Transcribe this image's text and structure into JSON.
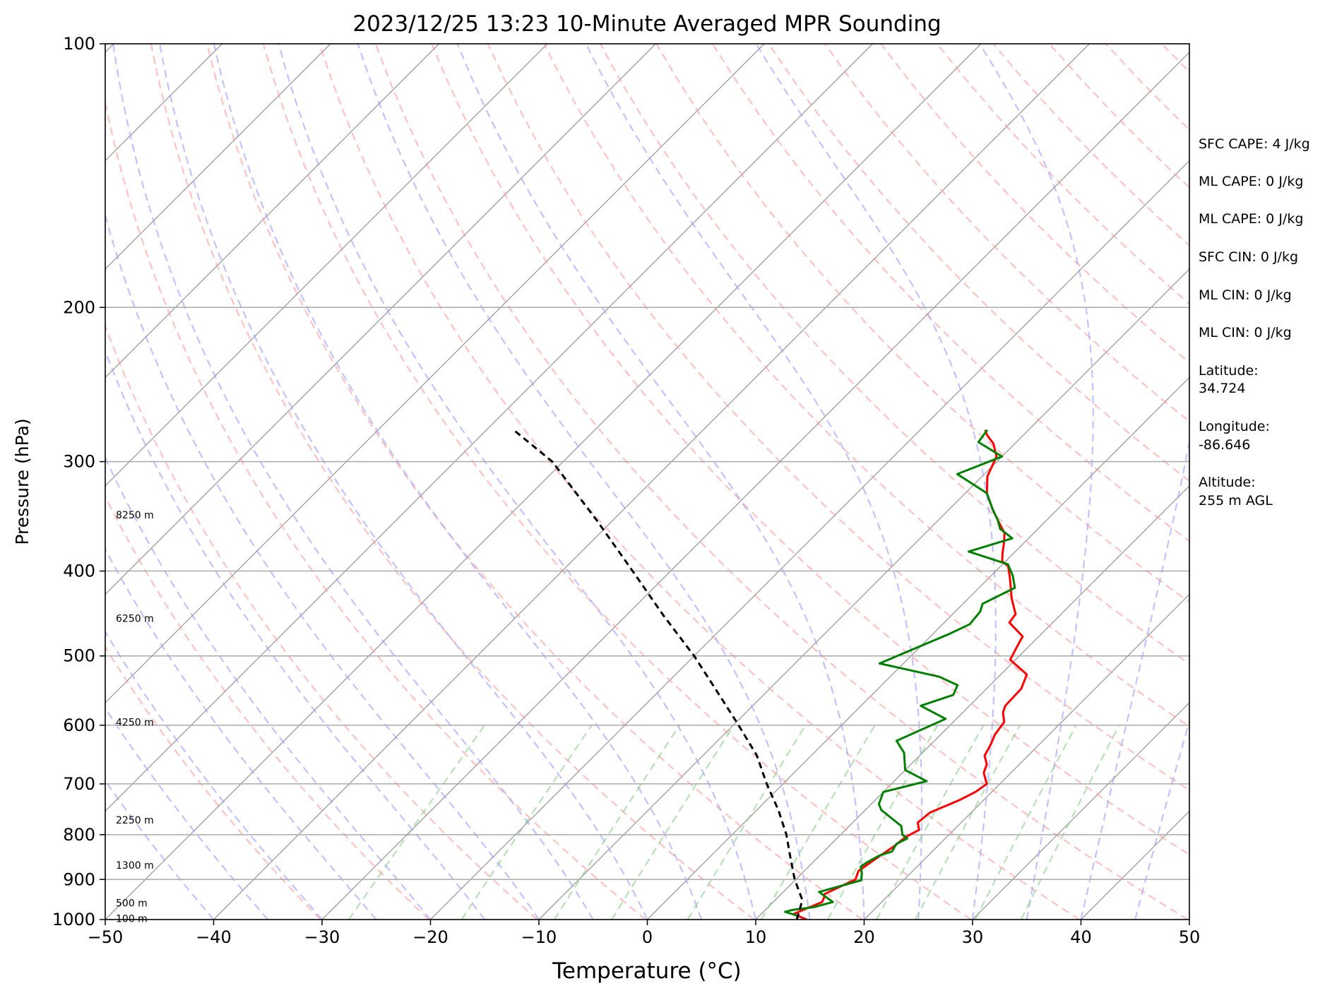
{
  "chart_data": {
    "type": "line",
    "title": "2023/12/25 13:23 10-Minute Averaged MPR Sounding",
    "xlabel": "Temperature (°C)",
    "ylabel": "Pressure (hPa)",
    "xlim": [
      -50,
      50
    ],
    "ylim": [
      1000,
      100
    ],
    "y_scale": "log",
    "skew_t": true,
    "grid": true,
    "x_ticks": [
      "−50",
      "−40",
      "−30",
      "−20",
      "−10",
      "0",
      "10",
      "20",
      "30",
      "40",
      "50"
    ],
    "y_ticks": [
      "100",
      "200",
      "300",
      "400",
      "500",
      "600",
      "700",
      "800",
      "900",
      "1000"
    ],
    "colors": {
      "temperature": "#ff0000",
      "dewpoint": "#008000",
      "parcel": "#000000",
      "dry_adiabat": "#ff9999",
      "moist_adiabat": "#9999ff",
      "mixing_ratio": "#88cc88",
      "isotherm": "#999999"
    },
    "series": [
      {
        "key": "temperature",
        "style": "solid",
        "points": [
          [
            14.7,
            1000
          ],
          [
            13.5,
            990
          ],
          [
            13.0,
            985
          ],
          [
            14.5,
            955
          ],
          [
            14.3,
            945
          ],
          [
            14.0,
            935
          ],
          [
            15.5,
            900
          ],
          [
            15.0,
            880
          ],
          [
            15.5,
            850
          ],
          [
            16.0,
            825
          ],
          [
            16.2,
            805
          ],
          [
            16.8,
            790
          ],
          [
            16.0,
            775
          ],
          [
            16.2,
            755
          ],
          [
            17.8,
            730
          ],
          [
            18.5,
            715
          ],
          [
            18.8,
            700
          ],
          [
            17.5,
            680
          ],
          [
            17.0,
            665
          ],
          [
            16.0,
            650
          ],
          [
            15.5,
            630
          ],
          [
            15.0,
            615
          ],
          [
            14.7,
            595
          ],
          [
            13.7,
            580
          ],
          [
            13.3,
            570
          ],
          [
            13.2,
            545
          ],
          [
            12.4,
            525
          ],
          [
            9.5,
            505
          ],
          [
            9.0,
            490
          ],
          [
            8.5,
            475
          ],
          [
            6.0,
            458
          ],
          [
            5.8,
            448
          ],
          [
            4.0,
            430
          ],
          [
            2.0,
            408
          ],
          [
            0.7,
            395
          ],
          [
            -0.3,
            390
          ],
          [
            -1.0,
            382
          ],
          [
            -1.8,
            372
          ],
          [
            -2.7,
            362
          ],
          [
            -4.5,
            350
          ],
          [
            -6.0,
            340
          ],
          [
            -8.0,
            326
          ],
          [
            -9.5,
            312
          ],
          [
            -10.5,
            296
          ],
          [
            -12.0,
            286
          ],
          [
            -13.3,
            280
          ],
          [
            -14.0,
            276
          ]
        ]
      },
      {
        "key": "dewpoint",
        "style": "solid",
        "points": [
          [
            13.8,
            1000
          ],
          [
            13.5,
            990
          ],
          [
            12.0,
            980
          ],
          [
            12.5,
            975
          ],
          [
            14.2,
            968
          ],
          [
            15.5,
            955
          ],
          [
            13.3,
            930
          ],
          [
            16.1,
            902
          ],
          [
            15.5,
            885
          ],
          [
            14.8,
            870
          ],
          [
            15.0,
            860
          ],
          [
            15.5,
            845
          ],
          [
            16.3,
            836
          ],
          [
            16.0,
            820
          ],
          [
            16.5,
            808
          ],
          [
            15.7,
            800
          ],
          [
            14.8,
            782
          ],
          [
            11.5,
            750
          ],
          [
            10.7,
            738
          ],
          [
            10.0,
            715
          ],
          [
            13.0,
            695
          ],
          [
            10.0,
            675
          ],
          [
            8.3,
            645
          ],
          [
            6.5,
            625
          ],
          [
            9.0,
            590
          ],
          [
            5.5,
            570
          ],
          [
            7.5,
            554
          ],
          [
            7.0,
            540
          ],
          [
            4.5,
            528
          ],
          [
            -2.2,
            510
          ],
          [
            -0.3,
            490
          ],
          [
            1.5,
            472
          ],
          [
            2.5,
            460
          ],
          [
            2.3,
            445
          ],
          [
            1.8,
            436
          ],
          [
            3.3,
            418
          ],
          [
            2.0,
            405
          ],
          [
            0.5,
            393
          ],
          [
            -4.3,
            380
          ],
          [
            -1.5,
            367
          ],
          [
            -3.5,
            358
          ],
          [
            -4.5,
            350
          ],
          [
            -6.0,
            340
          ],
          [
            -8.0,
            326
          ],
          [
            -12.5,
            310
          ],
          [
            -10.0,
            296
          ],
          [
            -13.5,
            285
          ],
          [
            -13.8,
            276
          ]
        ]
      },
      {
        "key": "parcel",
        "style": "dashed",
        "points": [
          [
            13.8,
            1000
          ],
          [
            12.5,
            950
          ],
          [
            9.9,
            900
          ],
          [
            7.5,
            850
          ],
          [
            5.0,
            800
          ],
          [
            2.0,
            750
          ],
          [
            -1.5,
            700
          ],
          [
            -5.0,
            650
          ],
          [
            -9.5,
            600
          ],
          [
            -14.5,
            550
          ],
          [
            -20.0,
            500
          ],
          [
            -26.5,
            450
          ],
          [
            -33.5,
            400
          ],
          [
            -41.5,
            350
          ],
          [
            -51.0,
            300
          ],
          [
            -57.5,
            276
          ]
        ]
      }
    ],
    "height_labels": [
      {
        "text": "8250 m",
        "p": 345
      },
      {
        "text": "6250 m",
        "p": 453
      },
      {
        "text": "4250 m",
        "p": 595
      },
      {
        "text": "2250 m",
        "p": 770
      },
      {
        "text": "1300 m",
        "p": 867
      },
      {
        "text": "500 m",
        "p": 957
      },
      {
        "text": "100 m",
        "p": 997
      }
    ]
  },
  "stats": [
    "SFC CAPE: 4 J/kg",
    "ML CAPE: 0 J/kg",
    "ML CAPE: 0 J/kg",
    "SFC CIN: 0 J/kg",
    "ML CIN: 0 J/kg",
    "ML CIN: 0 J/kg"
  ],
  "location": {
    "latitude_label": "Latitude:",
    "latitude_value": "34.724",
    "longitude_label": "Longitude:",
    "longitude_value": "-86.646",
    "altitude_label": "Altitude:",
    "altitude_value": "255 m AGL"
  }
}
